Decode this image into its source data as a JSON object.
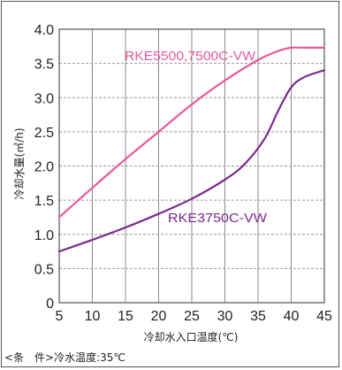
{
  "chart_data": {
    "type": "line",
    "title": "",
    "xlabel": "冷却水入口温度(℃)",
    "ylabel": "冷却水量(㎥/h)",
    "xlim": [
      5,
      45
    ],
    "ylim": [
      0,
      4.0
    ],
    "xticks": [
      "5",
      "10",
      "15",
      "20",
      "25",
      "30",
      "35",
      "40",
      "45"
    ],
    "yticks": [
      "0",
      "0.5",
      "1.0",
      "1.5",
      "2.0",
      "2.5",
      "3.0",
      "3.5",
      "4.0"
    ],
    "grid": "x solid, y dashed",
    "series": [
      {
        "name": "RKE5500,7500C-VW",
        "color": "#e8589c",
        "x": [
          5,
          10,
          15,
          20,
          25,
          30,
          35,
          38,
          40,
          42,
          45
        ],
        "y": [
          1.25,
          1.68,
          2.1,
          2.5,
          2.9,
          3.25,
          3.55,
          3.68,
          3.73,
          3.73,
          3.73
        ]
      },
      {
        "name": "RKE3750C-VW",
        "color": "#7b2a8c",
        "x": [
          5,
          10,
          15,
          20,
          25,
          30,
          33,
          36,
          38,
          40,
          42,
          45
        ],
        "y": [
          0.75,
          0.92,
          1.1,
          1.3,
          1.52,
          1.8,
          2.03,
          2.4,
          2.8,
          3.15,
          3.3,
          3.4
        ]
      }
    ]
  },
  "note": "<条　件>冷水温度:35℃"
}
